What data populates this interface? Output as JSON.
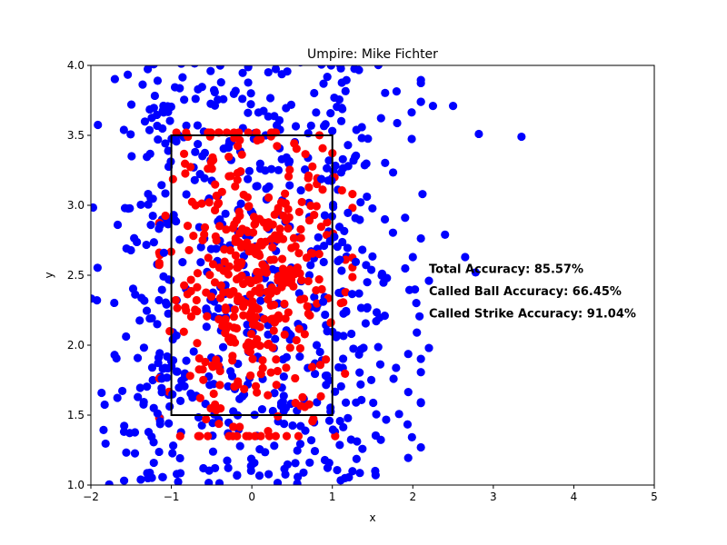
{
  "chart_data": {
    "type": "scatter",
    "title": "Umpire: Mike Fichter",
    "xlabel": "x",
    "ylabel": "y",
    "xlim": [
      -2,
      5
    ],
    "ylim": [
      1.0,
      4.0
    ],
    "xticks": [
      -2,
      -1,
      0,
      1,
      2,
      3,
      4,
      5
    ],
    "xtick_labels": [
      "−2",
      "−1",
      "0",
      "1",
      "2",
      "3",
      "4",
      "5"
    ],
    "yticks": [
      1.0,
      1.5,
      2.0,
      2.5,
      3.0,
      3.5,
      4.0
    ],
    "ytick_labels": [
      "1.0",
      "1.5",
      "2.0",
      "2.5",
      "3.0",
      "3.5",
      "4.0"
    ],
    "strike_zone": {
      "x": [
        -1,
        1
      ],
      "y": [
        1.5,
        3.5
      ]
    },
    "series": [
      {
        "name": "Called Ball",
        "color": "#0000ff",
        "approx_count": 520
      },
      {
        "name": "Called Strike",
        "color": "#ff0000",
        "approx_count": 430
      }
    ],
    "outlier_points": [
      {
        "series": "Called Ball",
        "x": 3.35,
        "y": 3.49
      },
      {
        "series": "Called Ball",
        "x": 2.82,
        "y": 3.51
      },
      {
        "series": "Called Ball",
        "x": 2.5,
        "y": 3.71
      },
      {
        "series": "Called Ball",
        "x": 2.25,
        "y": 3.71
      },
      {
        "series": "Called Ball",
        "x": 2.78,
        "y": 2.52
      },
      {
        "series": "Called Ball",
        "x": 2.65,
        "y": 2.63
      },
      {
        "series": "Called Ball",
        "x": 2.4,
        "y": 2.79
      },
      {
        "series": "Called Ball",
        "x": 2.2,
        "y": 2.46
      },
      {
        "series": "Called Ball",
        "x": 2.2,
        "y": 1.98
      },
      {
        "series": "Called Ball",
        "x": 2.12,
        "y": 3.08
      },
      {
        "series": "Called Ball",
        "x": 2.05,
        "y": 2.09
      },
      {
        "series": "Called Ball",
        "x": 2.0,
        "y": 2.63
      }
    ],
    "annotations": [
      {
        "text": "Total Accuracy: 85.57%",
        "x": 2.2,
        "y": 2.55
      },
      {
        "text": "Called Ball Accuracy: 66.45%",
        "x": 2.2,
        "y": 2.39
      },
      {
        "text": "Called Strike Accuracy: 91.04%",
        "x": 2.2,
        "y": 2.23
      }
    ]
  }
}
